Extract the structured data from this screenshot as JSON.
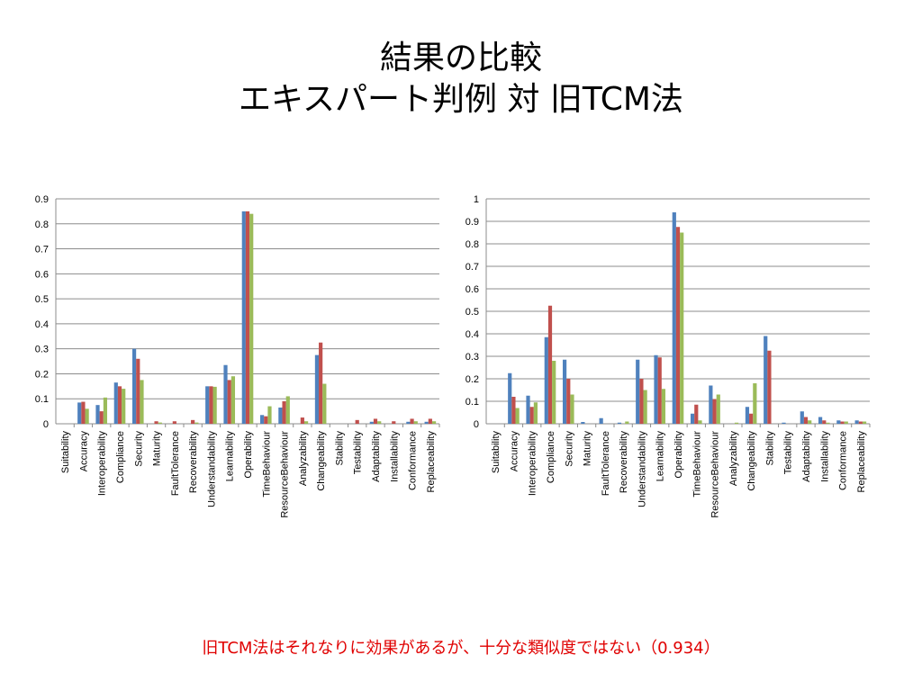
{
  "slide": {
    "title_line1": "結果の比較",
    "title_line2": "エキスパート判例 対 旧TCM法",
    "footnote": "旧TCM法はそれなりに効果があるが、十分な類似度ではない（0.934）"
  },
  "colors": {
    "series": [
      "#4f81bd",
      "#c0504d",
      "#9bbb59"
    ],
    "grid": "#8c8c8c",
    "axis": "#8c8c8c",
    "footnote": "#e00000"
  },
  "chart_data": [
    {
      "type": "bar",
      "title": "",
      "xlabel": "",
      "ylabel": "",
      "legend": "none",
      "grid": true,
      "ylim": [
        0,
        0.9
      ],
      "yticks": [
        "0",
        "0.1",
        "0.2",
        "0.3",
        "0.4",
        "0.5",
        "0.6",
        "0.7",
        "0.8",
        "0.9"
      ],
      "categories": [
        "Suitability",
        "Accuracy",
        "Interoperability",
        "Compliance",
        "Security",
        "Maturity",
        "FaultTolerance",
        "Recoverability",
        "Understandability",
        "Learnability",
        "Operability",
        "TimeBehaviour",
        "ResourceBehaviour",
        "Analyzability",
        "Changeability",
        "Stability",
        "Testability",
        "Adaptability",
        "Installability",
        "Conformance",
        "Replaceability"
      ],
      "series": [
        {
          "values": [
            0,
            0.085,
            0.075,
            0.165,
            0.3,
            0,
            0,
            0,
            0.15,
            0.235,
            0.85,
            0.035,
            0.065,
            0,
            0.275,
            0,
            0,
            0.008,
            0,
            0.008,
            0.008
          ]
        },
        {
          "values": [
            0,
            0.088,
            0.05,
            0.15,
            0.26,
            0.01,
            0.01,
            0.015,
            0.15,
            0.175,
            0.85,
            0.03,
            0.09,
            0.025,
            0.325,
            0,
            0.015,
            0.02,
            0.01,
            0.02,
            0.02
          ]
        },
        {
          "values": [
            0,
            0.06,
            0.105,
            0.14,
            0.175,
            0.005,
            0,
            0.005,
            0.148,
            0.19,
            0.84,
            0.07,
            0.11,
            0.01,
            0.16,
            0,
            0,
            0.01,
            0,
            0.01,
            0.01
          ]
        }
      ]
    },
    {
      "type": "bar",
      "title": "",
      "xlabel": "",
      "ylabel": "",
      "legend": "none",
      "grid": true,
      "ylim": [
        0,
        1
      ],
      "yticks": [
        "0",
        "0.1",
        "0.2",
        "0.3",
        "0.4",
        "0.5",
        "0.6",
        "0.7",
        "0.8",
        "0.9",
        "1"
      ],
      "categories": [
        "Suitability",
        "Accuracy",
        "Interoperability",
        "Compliance",
        "Security",
        "Maturity",
        "FaultTolerance",
        "Recoverability",
        "Understandability",
        "Learnability",
        "Operability",
        "TimeBehaviour",
        "ResourceBehaviour",
        "Analyzability",
        "Changeability",
        "Stability",
        "Testability",
        "Adaptability",
        "Installability",
        "Conformance",
        "Replaceability"
      ],
      "series": [
        {
          "values": [
            0,
            0.225,
            0.125,
            0.385,
            0.285,
            0.008,
            0.025,
            0.005,
            0.285,
            0.305,
            0.94,
            0.045,
            0.17,
            0,
            0.075,
            0.39,
            0.005,
            0.055,
            0.03,
            0.015,
            0.015
          ]
        },
        {
          "values": [
            0,
            0.12,
            0.075,
            0.525,
            0.2,
            0,
            0,
            0,
            0.2,
            0.295,
            0.875,
            0.085,
            0.11,
            0,
            0.045,
            0.325,
            0,
            0.03,
            0.015,
            0.01,
            0.01
          ]
        },
        {
          "values": [
            0,
            0.07,
            0.095,
            0.28,
            0.13,
            0,
            0,
            0.01,
            0.15,
            0.155,
            0.85,
            0.015,
            0.13,
            0.005,
            0.18,
            0,
            0,
            0.015,
            0.005,
            0.01,
            0.01
          ]
        }
      ]
    }
  ]
}
